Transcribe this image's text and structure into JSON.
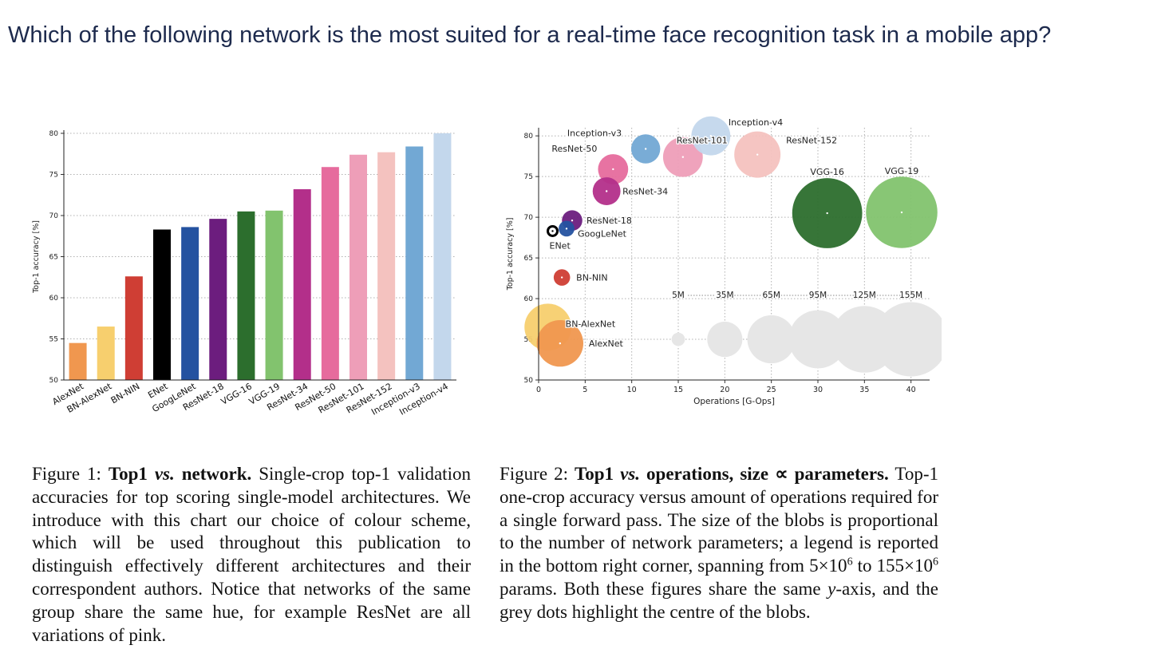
{
  "question": "Which of the following network is the most suited for a real-time face recognition task in a mobile app?",
  "chart_data": [
    {
      "type": "bar",
      "ylabel": "Top-1 accuracy [%]",
      "ylim": [
        50,
        80
      ],
      "yticks": [
        "50",
        "55",
        "60",
        "65",
        "70",
        "75",
        "80"
      ],
      "grid": "horizontal dotted",
      "categories": [
        "AlexNet",
        "BN-AlexNet",
        "BN-NIN",
        "ENet",
        "GoogLeNet",
        "ResNet-18",
        "VGG-16",
        "VGG-19",
        "ResNet-34",
        "ResNet-50",
        "ResNet-101",
        "ResNet-152",
        "Inception-v3",
        "Inception-v4"
      ],
      "values": [
        54.5,
        56.5,
        62.6,
        68.3,
        68.6,
        69.6,
        70.5,
        70.6,
        73.2,
        75.9,
        77.4,
        77.7,
        78.4,
        80.0
      ],
      "colors": [
        "#f0974f",
        "#f7cf6e",
        "#cf3e34",
        "#000000",
        "#2452a0",
        "#6c1d7e",
        "#2c6e2d",
        "#82c36e",
        "#b32f8a",
        "#e66b9d",
        "#ee9eb8",
        "#f4c2bf",
        "#72a8d4",
        "#c3d7ec"
      ]
    },
    {
      "type": "scatter",
      "xlabel": "Operations [G-Ops]",
      "ylabel": "Top-1 accuracy [%]",
      "xlim": [
        0,
        42
      ],
      "ylim": [
        50,
        81
      ],
      "xticks": [
        "0",
        "5",
        "10",
        "15",
        "20",
        "25",
        "30",
        "35",
        "40"
      ],
      "yticks": [
        "50",
        "55",
        "60",
        "65",
        "70",
        "75",
        "80"
      ],
      "grid": "dotted",
      "points": [
        {
          "name": "AlexNet",
          "x": 2.3,
          "y": 54.5,
          "params": 61,
          "color": "#f0974f"
        },
        {
          "name": "BN-AlexNet",
          "x": 1.0,
          "y": 56.5,
          "params": 62,
          "color": "#f7cf6e"
        },
        {
          "name": "BN-NIN",
          "x": 2.5,
          "y": 62.6,
          "params": 7.6,
          "color": "#cf3e34"
        },
        {
          "name": "ENet",
          "x": 1.5,
          "y": 68.3,
          "params": 0.4,
          "color": "#000000"
        },
        {
          "name": "GoogLeNet",
          "x": 3.0,
          "y": 68.6,
          "params": 7,
          "color": "#2452a0"
        },
        {
          "name": "ResNet-18",
          "x": 3.6,
          "y": 69.6,
          "params": 11.7,
          "color": "#6c1d7e"
        },
        {
          "name": "VGG-16",
          "x": 31.0,
          "y": 70.5,
          "params": 138,
          "color": "#2c6e2d"
        },
        {
          "name": "VGG-19",
          "x": 39.0,
          "y": 70.6,
          "params": 143.7,
          "color": "#82c36e"
        },
        {
          "name": "ResNet-34",
          "x": 7.3,
          "y": 73.2,
          "params": 21.8,
          "color": "#b32f8a"
        },
        {
          "name": "ResNet-50",
          "x": 8.0,
          "y": 75.9,
          "params": 25.6,
          "color": "#e66b9d"
        },
        {
          "name": "ResNet-101",
          "x": 15.5,
          "y": 77.4,
          "params": 44.5,
          "color": "#ee9eb8"
        },
        {
          "name": "ResNet-152",
          "x": 23.5,
          "y": 77.7,
          "params": 60.2,
          "color": "#f4c2bf"
        },
        {
          "name": "Inception-v3",
          "x": 11.5,
          "y": 78.4,
          "params": 23.8,
          "color": "#72a8d4"
        },
        {
          "name": "Inception-v4",
          "x": 18.5,
          "y": 80.0,
          "params": 42.7,
          "color": "#c3d7ec"
        }
      ],
      "size_legend": [
        {
          "label": "5M",
          "x": 15,
          "params": 5
        },
        {
          "label": "35M",
          "x": 20,
          "params": 35
        },
        {
          "label": "65M",
          "x": 25,
          "params": 65
        },
        {
          "label": "95M",
          "x": 30,
          "params": 95
        },
        {
          "label": "125M",
          "x": 35,
          "params": 125
        },
        {
          "label": "155M",
          "x": 40,
          "params": 155
        }
      ],
      "size_legend_y": 55
    }
  ],
  "captions": {
    "fig1": {
      "lead": "Figure 1: ",
      "head": "Top1 ",
      "vs": "vs.",
      "head2": " network.",
      "body": " Single-crop top-1 validation accuracies for top scoring single-model architectures. We introduce with this chart our choice of colour scheme, which will be used throughout this publication to distinguish effectively different architectures and their correspondent authors. Notice that networks of the same group share the same hue, for example ResNet are all variations of pink."
    },
    "fig2": {
      "lead": "Figure 2: ",
      "head": "Top1 ",
      "vs": "vs.",
      "head2": " operations, size ∝ parameters.",
      "body1": " Top-1 one-crop accuracy versus amount of operations required for a single forward pass. The size of the blobs is proportional to the number of network parameters; a legend is reported in the bottom right corner, spanning from 5×10",
      "exp1": "6",
      "body2": " to 155×10",
      "exp2": "6",
      "body3": " params. Both these figures share the same ",
      "yword": "y",
      "body4": "-axis, and the grey dots highlight the centre of the blobs."
    }
  }
}
